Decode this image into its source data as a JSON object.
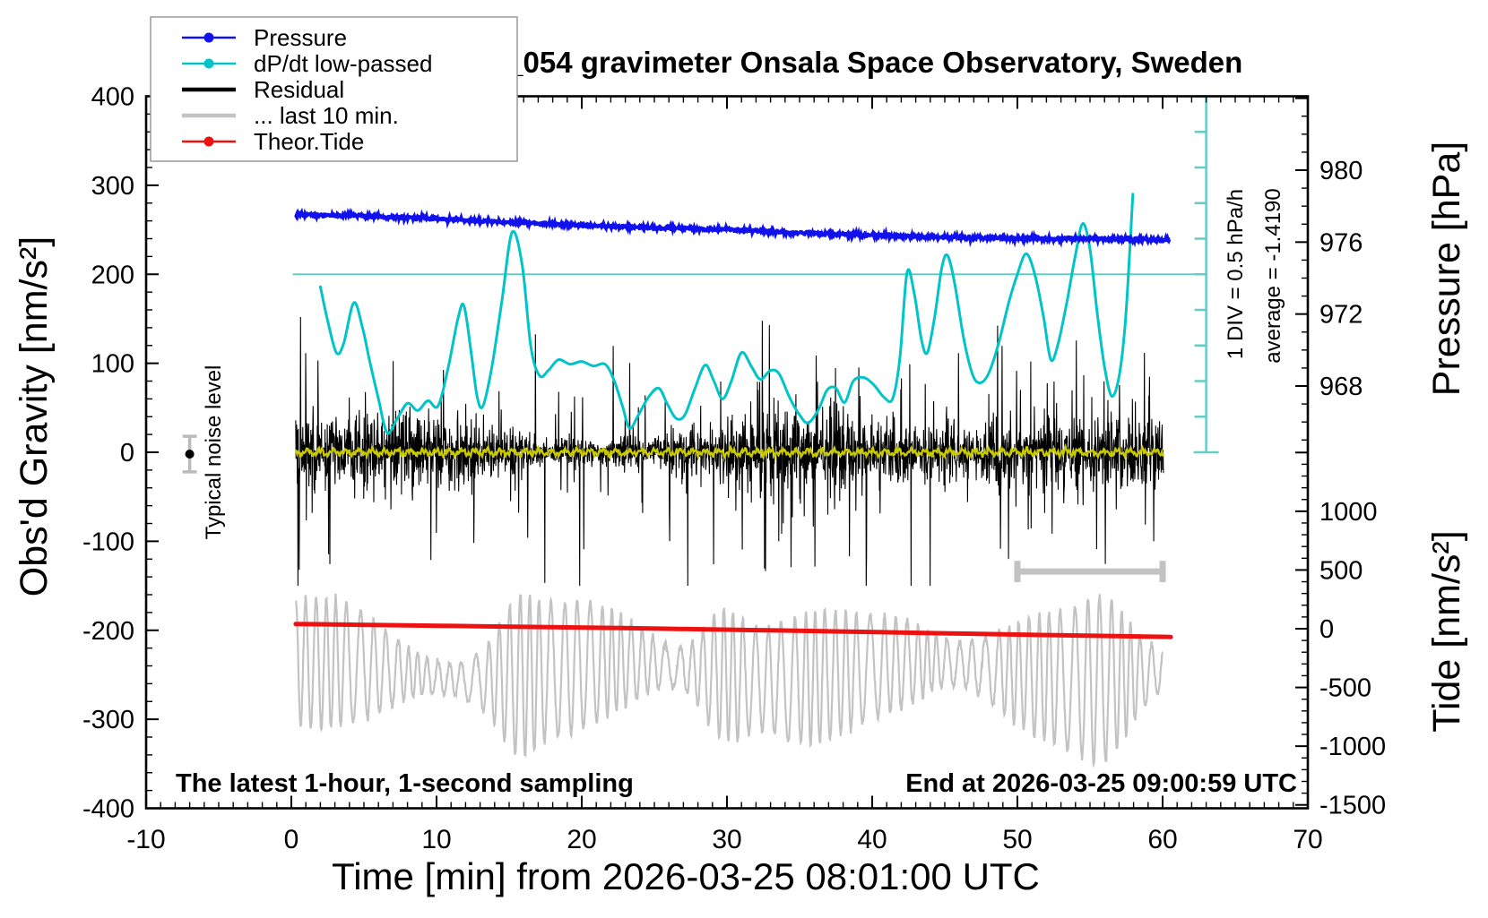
{
  "title": "SCG_054 gravimeter Onsala Space Observatory, Sweden",
  "legend": {
    "items": [
      {
        "label": "Pressure",
        "color_key": "pressure",
        "marker": "dot-line"
      },
      {
        "label": "dP/dt low-passed",
        "color_key": "dpdt",
        "marker": "dot-line"
      },
      {
        "label": "Residual",
        "color_key": "residual",
        "marker": "thick-line"
      },
      {
        "label": "... last 10 min.",
        "color_key": "last10",
        "marker": "thick-line"
      },
      {
        "label": "Theor.Tide",
        "color_key": "tide",
        "marker": "dot-line"
      }
    ]
  },
  "colors": {
    "pressure": "#1111ee",
    "dpdt": "#00c4c8",
    "dpdt_ref": "#63cdc6",
    "residual": "#000000",
    "residual_smooth": "#c9c900",
    "last10": "#c3c3c3",
    "tide": "#ee1111",
    "frame": "#000000",
    "background": "#ffffff"
  },
  "axes": {
    "x": {
      "title": "Time [min] from 2026-03-25 08:01:00 UTC",
      "min": -10,
      "max": 70,
      "major_ticks": [
        -10,
        0,
        10,
        20,
        30,
        40,
        50,
        60,
        70
      ],
      "minor_step": 1
    },
    "gravity": {
      "title": "Obs'd Gravity [nm/s²]",
      "min": -400,
      "max": 400,
      "major_ticks": [
        400,
        300,
        200,
        100,
        0,
        -100,
        -200,
        -300,
        -400
      ],
      "minor_step": 20
    },
    "pressure": {
      "title": "Pressure [hPa]",
      "major_ticks": [
        980,
        976,
        972,
        968
      ],
      "minor_step": 1
    },
    "tide": {
      "title": "Tide [nm/s²]",
      "major_ticks": [
        1000,
        500,
        0,
        -500,
        -1000,
        -1500
      ],
      "minor_step": 100
    }
  },
  "annotations": {
    "noise_level": "Typical noise level",
    "div_scale": "1 DIV = 0.5 hPa/h",
    "average": "average = -1.4190",
    "sampling": "The latest 1-hour, 1-second sampling",
    "end_time": "End at 2026-03-25 09:00:59 UTC"
  },
  "chart_data": {
    "type": "line",
    "title": "SCG_054 gravimeter Onsala Space Observatory, Sweden",
    "xlabel": "Time [min] from 2026-03-25 08:01:00 UTC",
    "x_range": [
      -10,
      70
    ],
    "gravity_range": [
      -400,
      400
    ],
    "pressure_axis": {
      "ref_value": 980,
      "px_per_hpa_note": "4 hPa per division",
      "ticks": [
        968,
        972,
        976,
        980
      ]
    },
    "tide_axis": {
      "ticks": [
        -1500,
        -1000,
        -500,
        0,
        500,
        1000
      ]
    },
    "series": {
      "pressure_hpa": {
        "t_start": 0.3,
        "t_end": 60.5,
        "noise_hpa": 0.055,
        "points": [
          [
            0.3,
            977.52
          ],
          [
            5,
            977.45
          ],
          [
            10,
            977.3
          ],
          [
            15,
            977.1
          ],
          [
            20,
            976.93
          ],
          [
            25,
            976.8
          ],
          [
            30,
            976.7
          ],
          [
            35,
            976.52
          ],
          [
            40,
            976.38
          ],
          [
            45,
            976.28
          ],
          [
            50,
            976.22
          ],
          [
            55,
            976.18
          ],
          [
            58,
            976.16
          ],
          [
            60.5,
            976.12
          ]
        ]
      },
      "dpdt_lowpassed_display_gravity": {
        "average_hpa_per_h": -1.419,
        "one_div_hpa_per_h": 0.5,
        "points": [
          [
            2.0,
            186
          ],
          [
            2.5,
            148
          ],
          [
            3.1,
            112
          ],
          [
            3.6,
            122
          ],
          [
            4.3,
            168
          ],
          [
            4.9,
            140
          ],
          [
            5.4,
            102
          ],
          [
            6.0,
            60
          ],
          [
            6.6,
            22
          ],
          [
            7.3,
            38
          ],
          [
            8.0,
            55
          ],
          [
            8.7,
            47
          ],
          [
            9.4,
            58
          ],
          [
            10.1,
            52
          ],
          [
            10.8,
            95
          ],
          [
            11.5,
            152
          ],
          [
            11.9,
            164
          ],
          [
            12.4,
            110
          ],
          [
            12.8,
            62
          ],
          [
            13.2,
            52
          ],
          [
            13.8,
            95
          ],
          [
            14.5,
            170
          ],
          [
            15.2,
            247
          ],
          [
            15.9,
            210
          ],
          [
            16.5,
            118
          ],
          [
            17.1,
            86
          ],
          [
            17.7,
            92
          ],
          [
            18.4,
            104
          ],
          [
            19.2,
            99
          ],
          [
            20.0,
            102
          ],
          [
            20.8,
            97
          ],
          [
            21.6,
            99
          ],
          [
            22.2,
            82
          ],
          [
            22.8,
            52
          ],
          [
            23.3,
            27
          ],
          [
            23.9,
            42
          ],
          [
            24.6,
            62
          ],
          [
            25.3,
            72
          ],
          [
            25.9,
            54
          ],
          [
            26.5,
            38
          ],
          [
            27.1,
            42
          ],
          [
            27.8,
            72
          ],
          [
            28.5,
            98
          ],
          [
            29.1,
            80
          ],
          [
            29.7,
            60
          ],
          [
            30.3,
            80
          ],
          [
            31.0,
            112
          ],
          [
            31.7,
            96
          ],
          [
            32.3,
            82
          ],
          [
            33.0,
            92
          ],
          [
            33.6,
            88
          ],
          [
            34.3,
            62
          ],
          [
            35.0,
            42
          ],
          [
            35.6,
            33
          ],
          [
            36.3,
            48
          ],
          [
            36.9,
            70
          ],
          [
            37.5,
            72
          ],
          [
            38.1,
            56
          ],
          [
            38.7,
            80
          ],
          [
            39.4,
            84
          ],
          [
            40.1,
            76
          ],
          [
            40.8,
            62
          ],
          [
            41.4,
            60
          ],
          [
            41.9,
            105
          ],
          [
            42.4,
            202
          ],
          [
            42.9,
            178
          ],
          [
            43.4,
            126
          ],
          [
            43.8,
            112
          ],
          [
            44.3,
            152
          ],
          [
            44.8,
            208
          ],
          [
            45.2,
            221
          ],
          [
            45.7,
            188
          ],
          [
            46.3,
            128
          ],
          [
            46.9,
            88
          ],
          [
            47.4,
            78
          ],
          [
            48.0,
            88
          ],
          [
            48.7,
            122
          ],
          [
            49.4,
            168
          ],
          [
            50.0,
            200
          ],
          [
            50.6,
            223
          ],
          [
            51.2,
            200
          ],
          [
            51.8,
            152
          ],
          [
            52.3,
            104
          ],
          [
            52.8,
            122
          ],
          [
            53.4,
            168
          ],
          [
            54.0,
            222
          ],
          [
            54.5,
            257
          ],
          [
            55.0,
            228
          ],
          [
            55.5,
            156
          ],
          [
            56.0,
            96
          ],
          [
            56.5,
            63
          ],
          [
            57.0,
            85
          ],
          [
            57.4,
            140
          ],
          [
            57.7,
            215
          ],
          [
            57.95,
            290
          ]
        ]
      },
      "residual": {
        "t_start": 0.3,
        "t_end": 60.06,
        "mean": 0,
        "sigma": 16,
        "spike_max": 150
      },
      "residual_smooth": {
        "gravity": 0,
        "amplitude": 5,
        "t_start": 0.3,
        "t_end": 60.05
      },
      "last_10_min": {
        "t_start": 0.3,
        "t_end": 60.0,
        "mean": -246,
        "carrier_period_min": 0.78,
        "bursts_at_t": [
          15.6,
          29.7,
          42.5,
          56.2
        ]
      },
      "theor_tide_nms2": {
        "t_start": 0.3,
        "t_end": 60.5,
        "points": [
          [
            0.3,
            40
          ],
          [
            10,
            26
          ],
          [
            20,
            10
          ],
          [
            30,
            -8
          ],
          [
            40,
            -28
          ],
          [
            50,
            -50
          ],
          [
            60.5,
            -70
          ]
        ]
      }
    },
    "reference_line": {
      "gravity": 200,
      "t_start": 0.1,
      "t_end": 63
    },
    "scale_bar": {
      "t": 63,
      "gravity_top": 400,
      "gravity_bottom": 0,
      "divisions": 10
    },
    "range_bar_last10": {
      "t_start": 50,
      "t_end": 60,
      "gravity": -134
    },
    "noise_marker": {
      "t": -7,
      "gravity": -2,
      "error": 20
    }
  }
}
